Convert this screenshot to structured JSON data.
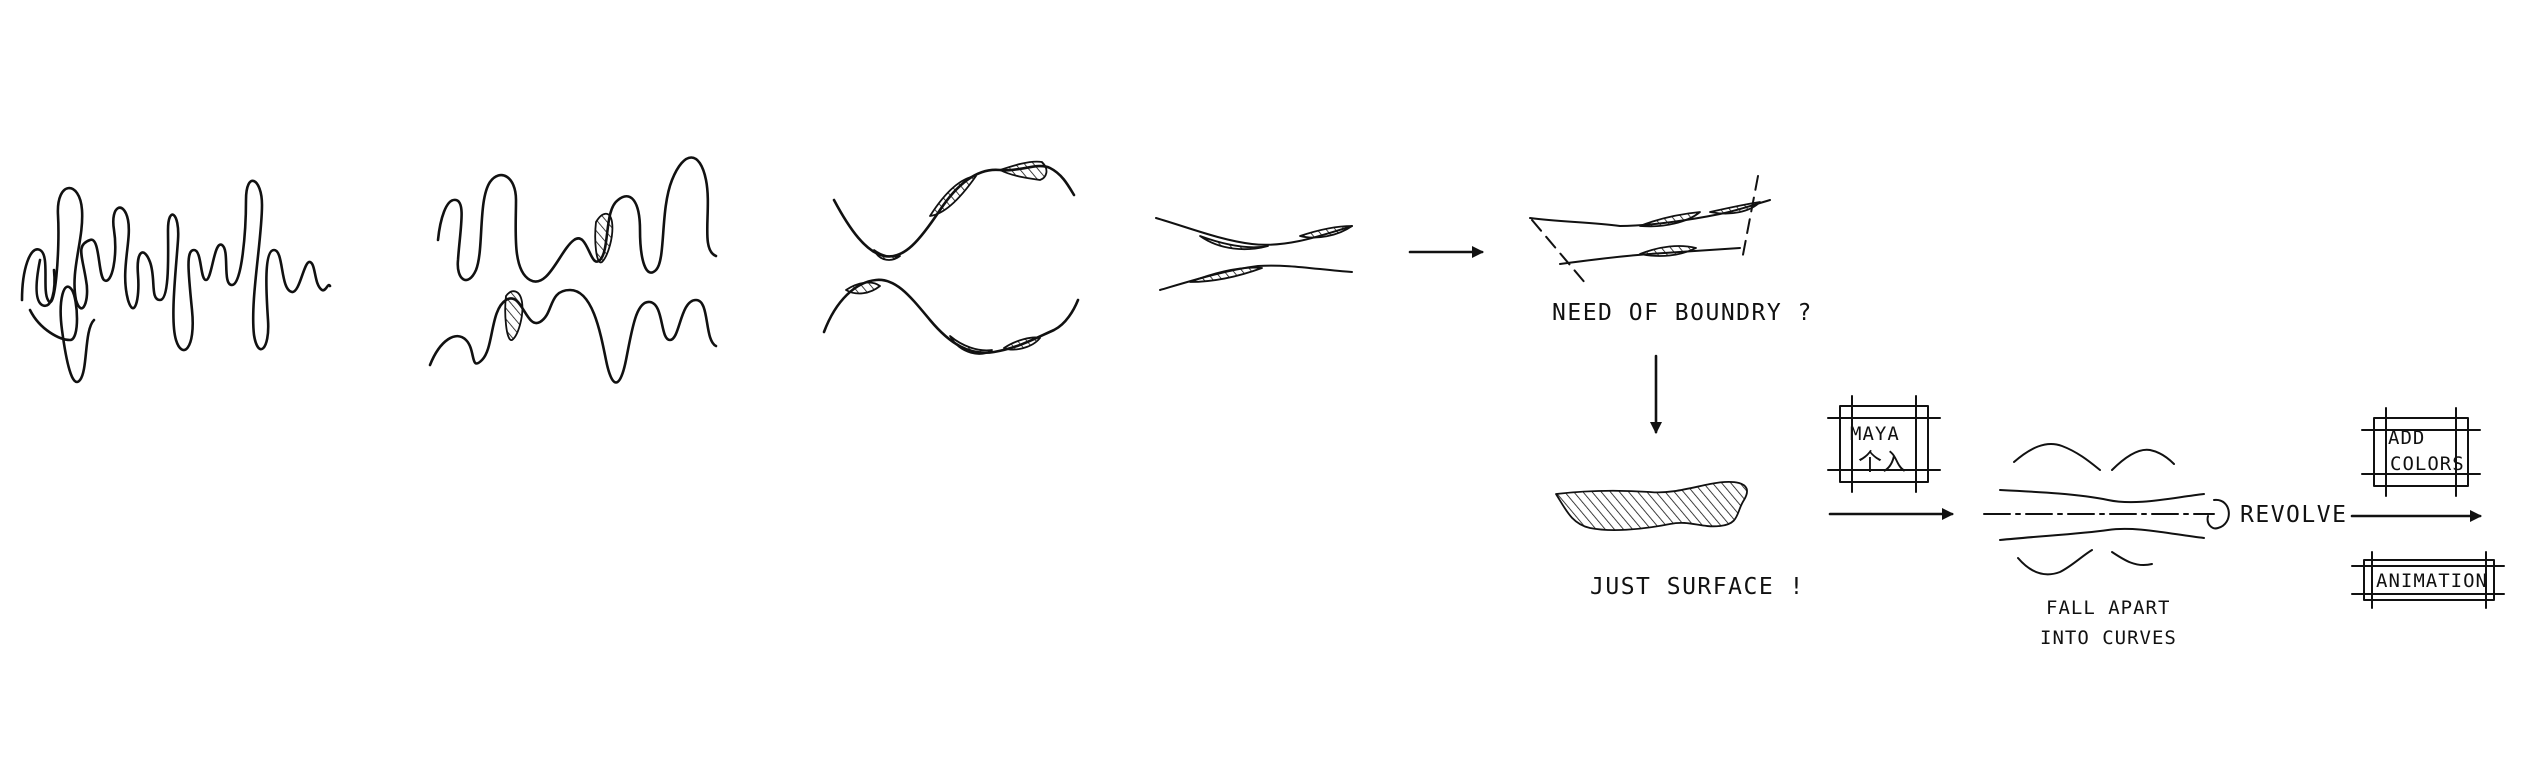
{
  "labels": {
    "need_of_boundry": "NEED OF BOUNDRY ?",
    "just_surface": "JUST SURFACE !",
    "maya_line1": "MAYA",
    "maya_line2": "个入",
    "fall_apart_line1": "FALL APART",
    "fall_apart_line2": "INTO CURVES",
    "revolve": "REVOLVE",
    "add_colors_line1": "ADD",
    "add_colors_line2": "COLORS",
    "animation": "ANIMATION"
  }
}
